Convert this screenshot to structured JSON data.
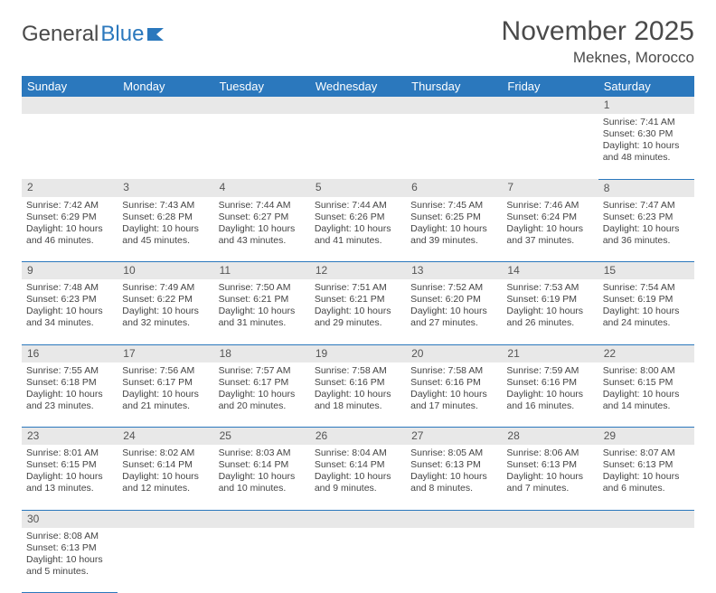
{
  "logo": {
    "part1": "General",
    "part2": "Blue"
  },
  "title": "November 2025",
  "location": "Meknes, Morocco",
  "colors": {
    "header_bg": "#2b78bd",
    "header_fg": "#ffffff",
    "daynum_bg": "#e8e8e8",
    "border": "#2b78bd",
    "text": "#444444"
  },
  "day_names": [
    "Sunday",
    "Monday",
    "Tuesday",
    "Wednesday",
    "Thursday",
    "Friday",
    "Saturday"
  ],
  "weeks": [
    [
      null,
      null,
      null,
      null,
      null,
      null,
      {
        "n": "1",
        "sr": "Sunrise: 7:41 AM",
        "ss": "Sunset: 6:30 PM",
        "dl": "Daylight: 10 hours and 48 minutes."
      }
    ],
    [
      {
        "n": "2",
        "sr": "Sunrise: 7:42 AM",
        "ss": "Sunset: 6:29 PM",
        "dl": "Daylight: 10 hours and 46 minutes."
      },
      {
        "n": "3",
        "sr": "Sunrise: 7:43 AM",
        "ss": "Sunset: 6:28 PM",
        "dl": "Daylight: 10 hours and 45 minutes."
      },
      {
        "n": "4",
        "sr": "Sunrise: 7:44 AM",
        "ss": "Sunset: 6:27 PM",
        "dl": "Daylight: 10 hours and 43 minutes."
      },
      {
        "n": "5",
        "sr": "Sunrise: 7:44 AM",
        "ss": "Sunset: 6:26 PM",
        "dl": "Daylight: 10 hours and 41 minutes."
      },
      {
        "n": "6",
        "sr": "Sunrise: 7:45 AM",
        "ss": "Sunset: 6:25 PM",
        "dl": "Daylight: 10 hours and 39 minutes."
      },
      {
        "n": "7",
        "sr": "Sunrise: 7:46 AM",
        "ss": "Sunset: 6:24 PM",
        "dl": "Daylight: 10 hours and 37 minutes."
      },
      {
        "n": "8",
        "sr": "Sunrise: 7:47 AM",
        "ss": "Sunset: 6:23 PM",
        "dl": "Daylight: 10 hours and 36 minutes."
      }
    ],
    [
      {
        "n": "9",
        "sr": "Sunrise: 7:48 AM",
        "ss": "Sunset: 6:23 PM",
        "dl": "Daylight: 10 hours and 34 minutes."
      },
      {
        "n": "10",
        "sr": "Sunrise: 7:49 AM",
        "ss": "Sunset: 6:22 PM",
        "dl": "Daylight: 10 hours and 32 minutes."
      },
      {
        "n": "11",
        "sr": "Sunrise: 7:50 AM",
        "ss": "Sunset: 6:21 PM",
        "dl": "Daylight: 10 hours and 31 minutes."
      },
      {
        "n": "12",
        "sr": "Sunrise: 7:51 AM",
        "ss": "Sunset: 6:21 PM",
        "dl": "Daylight: 10 hours and 29 minutes."
      },
      {
        "n": "13",
        "sr": "Sunrise: 7:52 AM",
        "ss": "Sunset: 6:20 PM",
        "dl": "Daylight: 10 hours and 27 minutes."
      },
      {
        "n": "14",
        "sr": "Sunrise: 7:53 AM",
        "ss": "Sunset: 6:19 PM",
        "dl": "Daylight: 10 hours and 26 minutes."
      },
      {
        "n": "15",
        "sr": "Sunrise: 7:54 AM",
        "ss": "Sunset: 6:19 PM",
        "dl": "Daylight: 10 hours and 24 minutes."
      }
    ],
    [
      {
        "n": "16",
        "sr": "Sunrise: 7:55 AM",
        "ss": "Sunset: 6:18 PM",
        "dl": "Daylight: 10 hours and 23 minutes."
      },
      {
        "n": "17",
        "sr": "Sunrise: 7:56 AM",
        "ss": "Sunset: 6:17 PM",
        "dl": "Daylight: 10 hours and 21 minutes."
      },
      {
        "n": "18",
        "sr": "Sunrise: 7:57 AM",
        "ss": "Sunset: 6:17 PM",
        "dl": "Daylight: 10 hours and 20 minutes."
      },
      {
        "n": "19",
        "sr": "Sunrise: 7:58 AM",
        "ss": "Sunset: 6:16 PM",
        "dl": "Daylight: 10 hours and 18 minutes."
      },
      {
        "n": "20",
        "sr": "Sunrise: 7:58 AM",
        "ss": "Sunset: 6:16 PM",
        "dl": "Daylight: 10 hours and 17 minutes."
      },
      {
        "n": "21",
        "sr": "Sunrise: 7:59 AM",
        "ss": "Sunset: 6:16 PM",
        "dl": "Daylight: 10 hours and 16 minutes."
      },
      {
        "n": "22",
        "sr": "Sunrise: 8:00 AM",
        "ss": "Sunset: 6:15 PM",
        "dl": "Daylight: 10 hours and 14 minutes."
      }
    ],
    [
      {
        "n": "23",
        "sr": "Sunrise: 8:01 AM",
        "ss": "Sunset: 6:15 PM",
        "dl": "Daylight: 10 hours and 13 minutes."
      },
      {
        "n": "24",
        "sr": "Sunrise: 8:02 AM",
        "ss": "Sunset: 6:14 PM",
        "dl": "Daylight: 10 hours and 12 minutes."
      },
      {
        "n": "25",
        "sr": "Sunrise: 8:03 AM",
        "ss": "Sunset: 6:14 PM",
        "dl": "Daylight: 10 hours and 10 minutes."
      },
      {
        "n": "26",
        "sr": "Sunrise: 8:04 AM",
        "ss": "Sunset: 6:14 PM",
        "dl": "Daylight: 10 hours and 9 minutes."
      },
      {
        "n": "27",
        "sr": "Sunrise: 8:05 AM",
        "ss": "Sunset: 6:13 PM",
        "dl": "Daylight: 10 hours and 8 minutes."
      },
      {
        "n": "28",
        "sr": "Sunrise: 8:06 AM",
        "ss": "Sunset: 6:13 PM",
        "dl": "Daylight: 10 hours and 7 minutes."
      },
      {
        "n": "29",
        "sr": "Sunrise: 8:07 AM",
        "ss": "Sunset: 6:13 PM",
        "dl": "Daylight: 10 hours and 6 minutes."
      }
    ],
    [
      {
        "n": "30",
        "sr": "Sunrise: 8:08 AM",
        "ss": "Sunset: 6:13 PM",
        "dl": "Daylight: 10 hours and 5 minutes."
      },
      null,
      null,
      null,
      null,
      null,
      null
    ]
  ]
}
